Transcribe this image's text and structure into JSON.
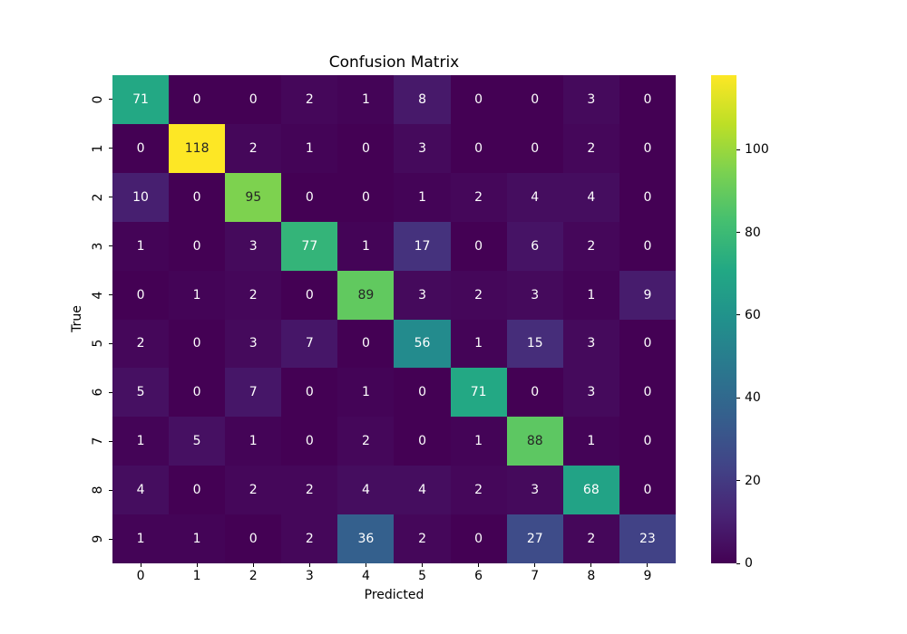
{
  "title": "Confusion Matrix",
  "axes": {
    "xlabel": "Predicted",
    "ylabel": "True"
  },
  "chart_data": {
    "type": "heatmap",
    "title": "Confusion Matrix",
    "xlabel": "Predicted",
    "ylabel": "True",
    "x_labels": [
      "0",
      "1",
      "2",
      "3",
      "4",
      "5",
      "6",
      "7",
      "8",
      "9"
    ],
    "y_labels": [
      "0",
      "1",
      "2",
      "3",
      "4",
      "5",
      "6",
      "7",
      "8",
      "9"
    ],
    "matrix": [
      [
        71,
        0,
        0,
        2,
        1,
        8,
        0,
        0,
        3,
        0
      ],
      [
        0,
        118,
        2,
        1,
        0,
        3,
        0,
        0,
        2,
        0
      ],
      [
        10,
        0,
        95,
        0,
        0,
        1,
        2,
        4,
        4,
        0
      ],
      [
        1,
        0,
        3,
        77,
        1,
        17,
        0,
        6,
        2,
        0
      ],
      [
        0,
        1,
        2,
        0,
        89,
        3,
        2,
        3,
        1,
        9
      ],
      [
        2,
        0,
        3,
        7,
        0,
        56,
        1,
        15,
        3,
        0
      ],
      [
        5,
        0,
        7,
        0,
        1,
        0,
        71,
        0,
        3,
        0
      ],
      [
        1,
        5,
        1,
        0,
        2,
        0,
        1,
        88,
        1,
        0
      ],
      [
        4,
        0,
        2,
        2,
        4,
        4,
        2,
        3,
        68,
        0
      ],
      [
        1,
        1,
        0,
        2,
        36,
        2,
        0,
        27,
        2,
        23
      ]
    ],
    "vmin": 0,
    "vmax": 118,
    "colormap": "viridis",
    "colormap_stops": [
      "#440154",
      "#482475",
      "#414487",
      "#355f8d",
      "#2a788e",
      "#21918c",
      "#22a884",
      "#44bf70",
      "#7ad151",
      "#bddf26",
      "#fde725"
    ],
    "colorbar_ticks": [
      0,
      20,
      40,
      60,
      80,
      100
    ],
    "annot_colors": {
      "on_dark": "#ffffff",
      "on_light": "#262626"
    },
    "legend_position": "colorbar-right",
    "grid": false
  }
}
